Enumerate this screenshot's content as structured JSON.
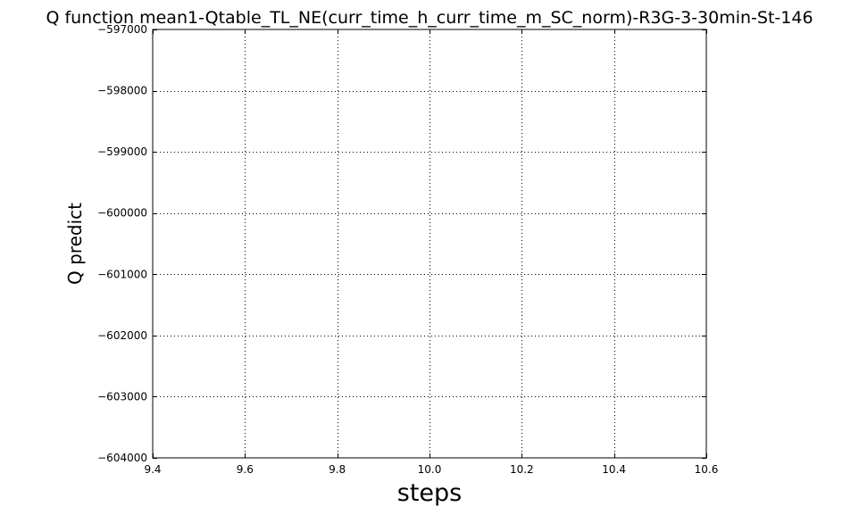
{
  "chart_data": {
    "type": "line",
    "title": "Q function mean1-Qtable_TL_NE(curr_time_h_curr_time_m_SC_norm)-R3G-3-30min-St-146",
    "xlabel": "steps",
    "ylabel": "Q predict",
    "xlim": [
      9.4,
      10.6
    ],
    "ylim": [
      -604000,
      -597000
    ],
    "x_ticks": [
      9.4,
      9.6,
      9.8,
      10.0,
      10.2,
      10.4,
      10.6
    ],
    "x_tick_labels": [
      "9.4",
      "9.6",
      "9.8",
      "10.0",
      "10.2",
      "10.4",
      "10.6"
    ],
    "y_ticks": [
      -597000,
      -598000,
      -599000,
      -600000,
      -601000,
      -602000,
      -603000,
      -604000
    ],
    "y_tick_labels": [
      "−597000",
      "−598000",
      "−599000",
      "−600000",
      "−601000",
      "−602000",
      "−603000",
      "−604000"
    ],
    "grid": true,
    "series": []
  }
}
